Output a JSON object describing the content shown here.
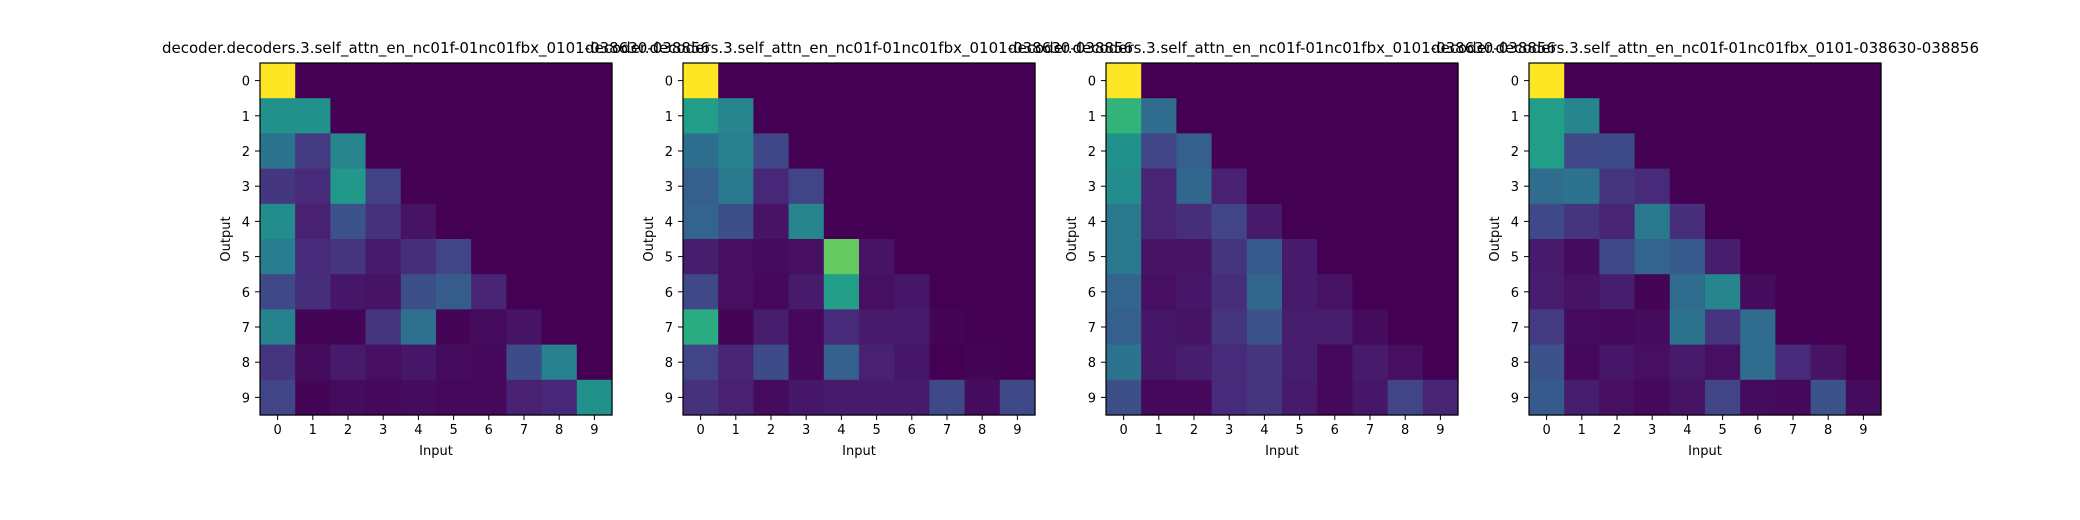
{
  "chart_data": [
    {
      "type": "heatmap",
      "title": "decoder.decoders.3.self_attn_en_nc01f-01nc01fbx_0101-038630-038856",
      "xlabel": "Input",
      "ylabel": "Output",
      "x_ticks": [
        "0",
        "1",
        "2",
        "3",
        "4",
        "5",
        "6",
        "7",
        "8",
        "9"
      ],
      "y_ticks": [
        "0",
        "1",
        "2",
        "3",
        "4",
        "5",
        "6",
        "7",
        "8",
        "9"
      ],
      "colormap": "viridis",
      "values": [
        [
          1.0,
          0.0,
          0.0,
          0.0,
          0.0,
          0.0,
          0.0,
          0.0,
          0.0,
          0.0
        ],
        [
          0.5,
          0.5,
          0.0,
          0.0,
          0.0,
          0.0,
          0.0,
          0.0,
          0.0,
          0.0
        ],
        [
          0.38,
          0.17,
          0.45,
          0.0,
          0.0,
          0.0,
          0.0,
          0.0,
          0.0,
          0.0
        ],
        [
          0.16,
          0.12,
          0.53,
          0.19,
          0.0,
          0.0,
          0.0,
          0.0,
          0.0,
          0.0
        ],
        [
          0.48,
          0.09,
          0.25,
          0.14,
          0.05,
          0.0,
          0.0,
          0.0,
          0.0,
          0.0
        ],
        [
          0.42,
          0.12,
          0.15,
          0.07,
          0.13,
          0.2,
          0.0,
          0.0,
          0.0,
          0.0
        ],
        [
          0.22,
          0.13,
          0.06,
          0.05,
          0.24,
          0.29,
          0.1,
          0.0,
          0.0,
          0.0
        ],
        [
          0.44,
          0.01,
          0.01,
          0.15,
          0.37,
          0.01,
          0.03,
          0.05,
          0.0,
          0.0
        ],
        [
          0.15,
          0.03,
          0.07,
          0.04,
          0.06,
          0.03,
          0.02,
          0.23,
          0.43,
          0.0
        ],
        [
          0.2,
          0.01,
          0.03,
          0.02,
          0.03,
          0.02,
          0.02,
          0.09,
          0.11,
          0.5
        ]
      ]
    },
    {
      "type": "heatmap",
      "title": "decoder.decoders.3.self_attn_en_nc01f-01nc01fbx_0101-038630-038856",
      "xlabel": "Input",
      "ylabel": "Output",
      "x_ticks": [
        "0",
        "1",
        "2",
        "3",
        "4",
        "5",
        "6",
        "7",
        "8",
        "9"
      ],
      "y_ticks": [
        "0",
        "1",
        "2",
        "3",
        "4",
        "5",
        "6",
        "7",
        "8",
        "9"
      ],
      "colormap": "viridis",
      "values": [
        [
          1.0,
          0.0,
          0.0,
          0.0,
          0.0,
          0.0,
          0.0,
          0.0,
          0.0,
          0.0
        ],
        [
          0.55,
          0.45,
          0.0,
          0.0,
          0.0,
          0.0,
          0.0,
          0.0,
          0.0,
          0.0
        ],
        [
          0.36,
          0.43,
          0.21,
          0.0,
          0.0,
          0.0,
          0.0,
          0.0,
          0.0,
          0.0
        ],
        [
          0.3,
          0.4,
          0.11,
          0.2,
          0.0,
          0.0,
          0.0,
          0.0,
          0.0,
          0.0
        ],
        [
          0.32,
          0.24,
          0.05,
          0.45,
          0.0,
          0.0,
          0.0,
          0.0,
          0.0,
          0.0
        ],
        [
          0.08,
          0.04,
          0.03,
          0.04,
          0.76,
          0.05,
          0.0,
          0.0,
          0.0,
          0.0
        ],
        [
          0.22,
          0.04,
          0.02,
          0.07,
          0.55,
          0.04,
          0.06,
          0.0,
          0.0,
          0.0
        ],
        [
          0.62,
          0.01,
          0.08,
          0.02,
          0.12,
          0.07,
          0.07,
          0.01,
          0.0,
          0.0
        ],
        [
          0.2,
          0.1,
          0.23,
          0.02,
          0.3,
          0.09,
          0.06,
          0.0,
          0.01,
          0.0
        ],
        [
          0.14,
          0.09,
          0.03,
          0.06,
          0.07,
          0.07,
          0.07,
          0.22,
          0.03,
          0.22
        ]
      ]
    },
    {
      "type": "heatmap",
      "title": "decoder.decoders.3.self_attn_en_nc01f-01nc01fbx_0101-038630-038856",
      "xlabel": "Input",
      "ylabel": "Output",
      "x_ticks": [
        "0",
        "1",
        "2",
        "3",
        "4",
        "5",
        "6",
        "7",
        "8",
        "9"
      ],
      "y_ticks": [
        "0",
        "1",
        "2",
        "3",
        "4",
        "5",
        "6",
        "7",
        "8",
        "9"
      ],
      "colormap": "viridis",
      "values": [
        [
          1.0,
          0.0,
          0.0,
          0.0,
          0.0,
          0.0,
          0.0,
          0.0,
          0.0,
          0.0
        ],
        [
          0.65,
          0.35,
          0.0,
          0.0,
          0.0,
          0.0,
          0.0,
          0.0,
          0.0,
          0.0
        ],
        [
          0.5,
          0.2,
          0.3,
          0.0,
          0.0,
          0.0,
          0.0,
          0.0,
          0.0,
          0.0
        ],
        [
          0.48,
          0.1,
          0.33,
          0.09,
          0.0,
          0.0,
          0.0,
          0.0,
          0.0,
          0.0
        ],
        [
          0.4,
          0.1,
          0.13,
          0.2,
          0.07,
          0.0,
          0.0,
          0.0,
          0.0,
          0.0
        ],
        [
          0.4,
          0.05,
          0.05,
          0.15,
          0.28,
          0.07,
          0.0,
          0.0,
          0.0,
          0.0
        ],
        [
          0.32,
          0.04,
          0.06,
          0.13,
          0.33,
          0.07,
          0.05,
          0.0,
          0.0,
          0.0
        ],
        [
          0.3,
          0.06,
          0.05,
          0.15,
          0.25,
          0.08,
          0.08,
          0.03,
          0.0,
          0.0
        ],
        [
          0.38,
          0.06,
          0.08,
          0.12,
          0.15,
          0.08,
          0.02,
          0.07,
          0.04,
          0.0
        ],
        [
          0.24,
          0.02,
          0.02,
          0.12,
          0.15,
          0.07,
          0.02,
          0.06,
          0.2,
          0.1
        ]
      ]
    },
    {
      "type": "heatmap",
      "title": "decoder.decoders.3.self_attn_en_nc01f-01nc01fbx_0101-038630-038856",
      "xlabel": "Input",
      "ylabel": "Output",
      "x_ticks": [
        "0",
        "1",
        "2",
        "3",
        "4",
        "5",
        "6",
        "7",
        "8",
        "9"
      ],
      "y_ticks": [
        "0",
        "1",
        "2",
        "3",
        "4",
        "5",
        "6",
        "7",
        "8",
        "9"
      ],
      "colormap": "viridis",
      "values": [
        [
          1.0,
          0.0,
          0.0,
          0.0,
          0.0,
          0.0,
          0.0,
          0.0,
          0.0,
          0.0
        ],
        [
          0.55,
          0.45,
          0.0,
          0.0,
          0.0,
          0.0,
          0.0,
          0.0,
          0.0,
          0.0
        ],
        [
          0.55,
          0.22,
          0.23,
          0.0,
          0.0,
          0.0,
          0.0,
          0.0,
          0.0,
          0.0
        ],
        [
          0.35,
          0.38,
          0.15,
          0.12,
          0.0,
          0.0,
          0.0,
          0.0,
          0.0,
          0.0
        ],
        [
          0.22,
          0.15,
          0.1,
          0.4,
          0.13,
          0.0,
          0.0,
          0.0,
          0.0,
          0.0
        ],
        [
          0.07,
          0.03,
          0.22,
          0.32,
          0.28,
          0.08,
          0.0,
          0.0,
          0.0,
          0.0
        ],
        [
          0.08,
          0.05,
          0.08,
          0.01,
          0.35,
          0.45,
          0.03,
          0.0,
          0.0,
          0.0
        ],
        [
          0.17,
          0.03,
          0.02,
          0.03,
          0.38,
          0.15,
          0.35,
          0.0,
          0.0,
          0.0
        ],
        [
          0.25,
          0.02,
          0.06,
          0.04,
          0.07,
          0.04,
          0.35,
          0.12,
          0.05,
          0.0
        ],
        [
          0.28,
          0.08,
          0.04,
          0.02,
          0.05,
          0.2,
          0.03,
          0.02,
          0.25,
          0.03
        ]
      ]
    }
  ]
}
